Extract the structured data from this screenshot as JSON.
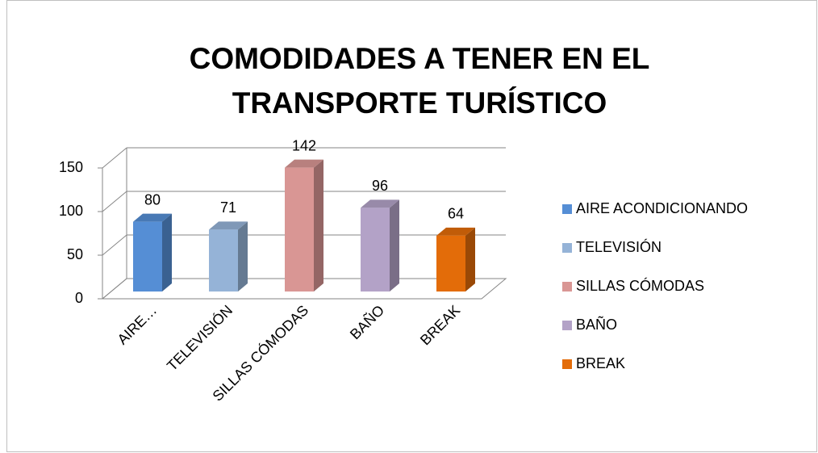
{
  "chart_data": {
    "type": "bar3d",
    "title": [
      "COMODIDADES A TENER EN EL",
      "TRANSPORTE TURÍSTICO"
    ],
    "categories": [
      "AIRE…",
      "TELEVISIÓN",
      "SILLAS CÓMODAS",
      "BAÑO",
      "BREAK"
    ],
    "legend": [
      "AIRE ACONDICIONANDO",
      "TELEVISIÓN",
      "SILLAS CÓMODAS",
      "BAÑO",
      "BREAK"
    ],
    "values": [
      80,
      71,
      142,
      96,
      64
    ],
    "colors": [
      "#558ed5",
      "#95b3d7",
      "#d99694",
      "#b3a2c7",
      "#e36c09"
    ],
    "ylim": [
      0,
      150
    ],
    "yticks": [
      0,
      50,
      100,
      150
    ],
    "grid": true
  }
}
